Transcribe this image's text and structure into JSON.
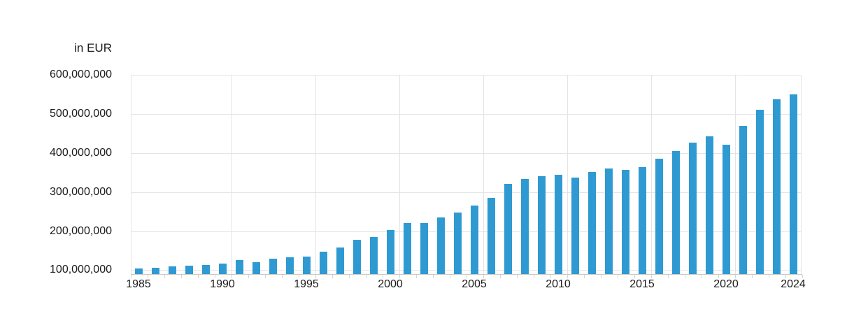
{
  "chart_data": {
    "type": "bar",
    "title": "",
    "ylabel": "in EUR",
    "xlabel": "",
    "x": [
      1985,
      1986,
      1987,
      1988,
      1989,
      1990,
      1991,
      1992,
      1993,
      1994,
      1995,
      1996,
      1997,
      1998,
      1999,
      2000,
      2001,
      2002,
      2003,
      2004,
      2005,
      2006,
      2007,
      2008,
      2009,
      2010,
      2011,
      2012,
      2013,
      2014,
      2015,
      2016,
      2017,
      2018,
      2019,
      2020,
      2021,
      2022,
      2023,
      2024
    ],
    "values": [
      105000000,
      107000000,
      109000000,
      111000000,
      113000000,
      117000000,
      125000000,
      121000000,
      129000000,
      133000000,
      135000000,
      148000000,
      158000000,
      177000000,
      185000000,
      203000000,
      220000000,
      221000000,
      235000000,
      247000000,
      266000000,
      285000000,
      320000000,
      333000000,
      340000000,
      345000000,
      337000000,
      351000000,
      361000000,
      357000000,
      363000000,
      385000000,
      405000000,
      426000000,
      442000000,
      421000000,
      470000000,
      510000000,
      537000000,
      550000000
    ],
    "ylim": [
      90000000,
      600000000
    ],
    "yticks": [
      100000000,
      200000000,
      300000000,
      400000000,
      500000000,
      600000000
    ],
    "ytick_labels": [
      "100,000,000",
      "200,000,000",
      "300,000,000",
      "400,000,000",
      "500,000,000",
      "600,000,000"
    ],
    "xtick_years": [
      1985,
      1990,
      1995,
      2000,
      2005,
      2010,
      2015,
      2020,
      2024
    ],
    "vgrid_years": [
      1990,
      1995,
      2000,
      2005,
      2010,
      2015,
      2020
    ],
    "grid_on": true,
    "legend": null
  },
  "style": {
    "bar_color": "#2f9ad2",
    "grid_color": "#e4e4e4",
    "axis_color": "#c9c9c9",
    "tick_color": "#d5d5d5",
    "text_color": "#1a1a1a",
    "background_color": "#ffffff"
  }
}
